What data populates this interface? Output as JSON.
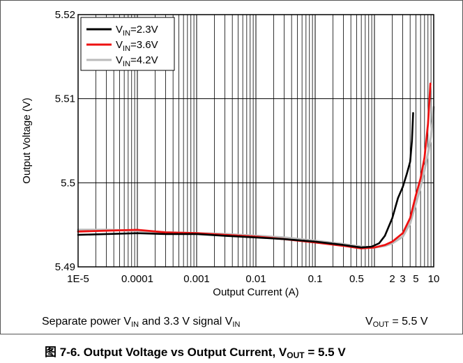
{
  "chart_data": {
    "type": "line",
    "title": "",
    "xlabel": "Output Current (A)",
    "ylabel": "Output Voltage (V)",
    "x_scale": "log",
    "xlim": [
      1e-05,
      10
    ],
    "ylim": [
      5.49,
      5.52
    ],
    "y_ticks": [
      5.49,
      5.5,
      5.51,
      5.52
    ],
    "y_tick_labels": [
      "5.49",
      "5.5",
      "5.51",
      "5.52"
    ],
    "x_tick_labels": [
      {
        "value": 1e-05,
        "label": "1E-5"
      },
      {
        "value": 0.0001,
        "label": "0.0001"
      },
      {
        "value": 0.001,
        "label": "0.001"
      },
      {
        "value": 0.01,
        "label": "0.01"
      },
      {
        "value": 0.1,
        "label": "0.1"
      },
      {
        "value": 0.5,
        "label": "0.5"
      },
      {
        "value": 2,
        "label": "2"
      },
      {
        "value": 3,
        "label": "3"
      },
      {
        "value": 5,
        "label": "5"
      },
      {
        "value": 10,
        "label": "10"
      }
    ],
    "grid": true,
    "legend_position": "top-left",
    "series": [
      {
        "name_main": "V",
        "name_sub": "IN",
        "name_rest": "=2.3V",
        "color": "#000000",
        "x": [
          1e-05,
          3e-05,
          0.0001,
          0.0003,
          0.001,
          0.003,
          0.01,
          0.03,
          0.1,
          0.3,
          0.6,
          0.9,
          1.2,
          1.5,
          2.0,
          2.5,
          3.0,
          3.5,
          4.0,
          4.3,
          4.5
        ],
        "y": [
          5.4938,
          5.4939,
          5.494,
          5.4939,
          5.4939,
          5.4937,
          5.4935,
          5.4933,
          5.493,
          5.4926,
          5.4923,
          5.4924,
          5.4928,
          5.4937,
          5.4958,
          5.4982,
          5.4995,
          5.501,
          5.5025,
          5.505,
          5.5083
        ]
      },
      {
        "name_main": "V",
        "name_sub": "IN",
        "name_rest": "=3.6V",
        "color": "#ee1111",
        "x": [
          1e-05,
          3e-05,
          0.0001,
          0.0003,
          0.001,
          0.003,
          0.01,
          0.03,
          0.1,
          0.3,
          0.6,
          1.0,
          1.5,
          2.0,
          3.0,
          4.0,
          5.0,
          6.0,
          7.0,
          8.0,
          8.8
        ],
        "y": [
          5.4942,
          5.4943,
          5.4944,
          5.4941,
          5.494,
          5.4938,
          5.4936,
          5.4933,
          5.4929,
          5.4925,
          5.4922,
          5.4923,
          5.4926,
          5.493,
          5.494,
          5.4958,
          5.4985,
          5.5005,
          5.503,
          5.507,
          5.5118
        ]
      },
      {
        "name_main": "V",
        "name_sub": "IN",
        "name_rest": "=4.2V",
        "color": "#bbbbbb",
        "x": [
          1e-05,
          3e-05,
          0.0001,
          0.0003,
          0.001,
          0.003,
          0.01,
          0.03,
          0.1,
          0.3,
          0.6,
          1.0,
          1.5,
          2.0,
          3.0,
          4.0,
          5.0,
          6.0,
          7.0,
          8.0,
          9.0,
          10.0
        ],
        "y": [
          5.4944,
          5.4944,
          5.4943,
          5.4941,
          5.494,
          5.4939,
          5.4937,
          5.4935,
          5.4931,
          5.4927,
          5.4924,
          5.4923,
          5.4925,
          5.4928,
          5.4936,
          5.4952,
          5.4975,
          5.4995,
          5.5015,
          5.5035,
          5.5055,
          5.509
        ]
      }
    ]
  },
  "conditions": {
    "left_main": "Separate power V",
    "left_sub1": "IN",
    "left_mid": " and 3.3 V signal V",
    "left_sub2": "IN",
    "right_main": "V",
    "right_sub": "OUT",
    "right_rest": " = 5.5 V"
  },
  "caption": {
    "main": "图 7-6. Output Voltage vs Output Current, V",
    "sub": "OUT",
    "rest": " = 5.5 V"
  }
}
